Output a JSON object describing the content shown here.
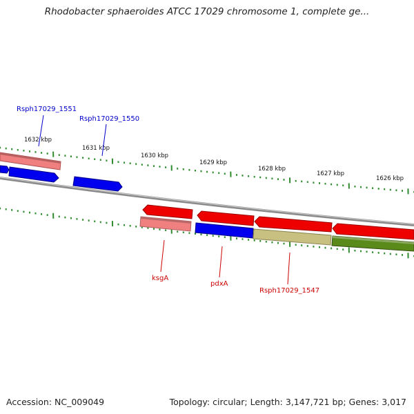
{
  "title": "Rhodobacter sphaeroides ATCC 17029 chromosome 1, complete ge...",
  "footer": {
    "accession": "Accession: NC_009049",
    "stats": "Topology: circular; Length: 3,147,721 bp; Genes: 3,017"
  },
  "ruler_labels": [
    "1632 kbp",
    "1631 kbp",
    "1630 kbp",
    "1629 kbp",
    "1628 kbp",
    "1627 kbp",
    "1626 kbp"
  ],
  "gene_labels": {
    "top": [
      "Rsph17029_1551",
      "Rsph17029_1550"
    ],
    "bottom": [
      "ksgA",
      "pdxA",
      "Rsph17029_1547"
    ]
  },
  "colors": {
    "label_blue": "#0000cc",
    "label_red": "#cc0000",
    "tick_green": "#2e8b2e",
    "backbone": "#8a8a8a",
    "feature_red": "#ee0000",
    "feature_pink": "#f08080",
    "feature_blue": "#0000ee",
    "feature_olive": "#c8c080",
    "feature_green": "#5a8a1a"
  }
}
